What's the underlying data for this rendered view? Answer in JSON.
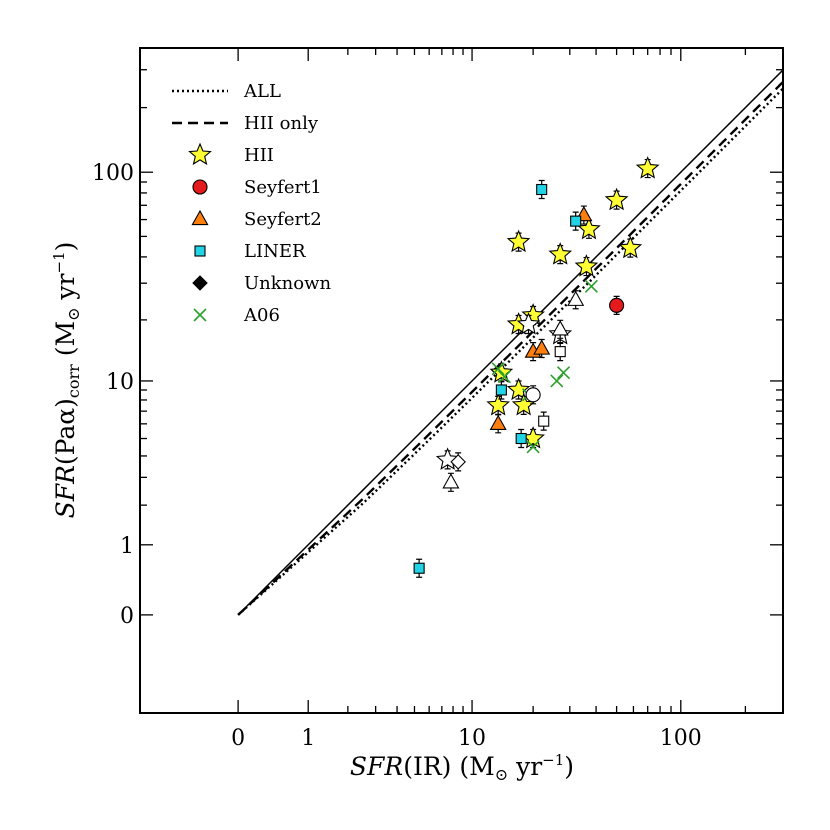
{
  "chart_data": {
    "type": "scatter",
    "x_axis": {
      "label_italic": "SFR",
      "label_rest": "(IR) (M",
      "label_sub": "⊙",
      "label_unit": " yr",
      "label_sup": "−1",
      "label_close": ")",
      "scale": "log-with-zero",
      "range": [
        0,
        300
      ],
      "tick_labels": [
        "0",
        "1",
        "10",
        "100"
      ]
    },
    "y_axis": {
      "label_italic": "SFR",
      "label_rest": "(Paα)",
      "label_sub": "corr",
      "label_unit": " (M",
      "label_sub2": "⊙",
      "label_unit2": " yr",
      "label_sup": "−1",
      "label_close": ")",
      "scale": "log-with-zero",
      "range": [
        0,
        300
      ],
      "tick_labels": [
        "0",
        "1",
        "10",
        "100"
      ]
    },
    "legend": {
      "position": "top-left",
      "entries": [
        {
          "label": "ALL",
          "kind": "line",
          "style": "dotted"
        },
        {
          "label": "HII only",
          "kind": "line",
          "style": "dashed"
        },
        {
          "label": "HII",
          "kind": "marker",
          "marker": "star",
          "color": "#ffff33"
        },
        {
          "label": "Seyfert1",
          "kind": "marker",
          "marker": "circle",
          "color": "#e41a1c"
        },
        {
          "label": "Seyfert2",
          "kind": "marker",
          "marker": "triangle",
          "color": "#ff7f0e"
        },
        {
          "label": "LINER",
          "kind": "marker",
          "marker": "square",
          "color": "#22d3e6"
        },
        {
          "label": "Unknown",
          "kind": "marker",
          "marker": "diamond",
          "color": "#000000"
        },
        {
          "label": "A06",
          "kind": "marker",
          "marker": "x",
          "color": "#2ca02c"
        }
      ]
    },
    "lines": [
      {
        "name": "one-to-one",
        "style": "solid",
        "slope": 1.0
      },
      {
        "name": "HII only",
        "style": "dashed",
        "slope": 0.88
      },
      {
        "name": "ALL",
        "style": "dotted",
        "slope": 0.82
      }
    ],
    "series": [
      {
        "name": "HII",
        "marker": "star",
        "color": "#ffff33",
        "points": [
          [
            17,
            47
          ],
          [
            27,
            41
          ],
          [
            36,
            36
          ],
          [
            37,
            54
          ],
          [
            50,
            74
          ],
          [
            58,
            44
          ],
          [
            70,
            104
          ],
          [
            17,
            19
          ],
          [
            20,
            21
          ],
          [
            13.5,
            7.5
          ],
          [
            14,
            11
          ],
          [
            17,
            9
          ],
          [
            18,
            7.5
          ],
          [
            20,
            5
          ]
        ]
      },
      {
        "name": "Seyfert1",
        "marker": "circle",
        "color": "#e41a1c",
        "points": [
          [
            50,
            23.5
          ]
        ]
      },
      {
        "name": "Seyfert2",
        "marker": "triangle",
        "color": "#ff7f0e",
        "points": [
          [
            35,
            63
          ],
          [
            20,
            14
          ],
          [
            22,
            14.5
          ],
          [
            13.5,
            6
          ]
        ]
      },
      {
        "name": "LINER",
        "marker": "square",
        "color": "#22d3e6",
        "points": [
          [
            22,
            83
          ],
          [
            32,
            59
          ],
          [
            14,
            9
          ],
          [
            17.5,
            5
          ],
          [
            5.3,
            0.58
          ]
        ]
      },
      {
        "name": "A06",
        "marker": "x",
        "color": "#2ca02c",
        "points": [
          [
            38,
            29
          ],
          [
            13.5,
            11.5
          ],
          [
            14.5,
            10.5
          ],
          [
            19,
            8.5
          ],
          [
            26,
            10
          ],
          [
            28,
            11
          ],
          [
            20,
            4.5
          ]
        ]
      },
      {
        "name": "open-star",
        "marker": "star",
        "color": "#ffffff",
        "points": [
          [
            7.5,
            3.8
          ],
          [
            19,
            19
          ],
          [
            27,
            17
          ]
        ]
      },
      {
        "name": "open-triangle",
        "marker": "triangle",
        "color": "#ffffff",
        "points": [
          [
            7.8,
            2.8
          ],
          [
            32,
            25
          ],
          [
            27,
            18
          ]
        ]
      },
      {
        "name": "open-square",
        "marker": "square",
        "color": "#ffffff",
        "points": [
          [
            22.5,
            6.2
          ],
          [
            27,
            14
          ]
        ]
      },
      {
        "name": "open-diamond",
        "marker": "diamond",
        "color": "#ffffff",
        "points": [
          [
            8.5,
            3.7
          ]
        ]
      },
      {
        "name": "open-circle",
        "marker": "circle",
        "color": "#ffffff",
        "points": [
          [
            20,
            8.5
          ]
        ]
      }
    ]
  }
}
